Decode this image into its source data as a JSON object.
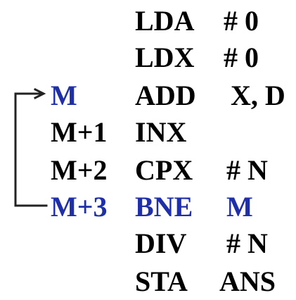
{
  "colors": {
    "text": "#000000",
    "highlight": "#1f2fa8",
    "arrow": "#222222"
  },
  "program": [
    {
      "addr": "",
      "op": "LDA",
      "arg": "# 0",
      "highlight": false
    },
    {
      "addr": "",
      "op": "LDX",
      "arg": "# 0",
      "highlight": false
    },
    {
      "addr": "M",
      "op": "ADD",
      "arg": "X, D",
      "highlight": "addr"
    },
    {
      "addr": "M+1",
      "op": "INX",
      "arg": "",
      "highlight": false
    },
    {
      "addr": "M+2",
      "op": "CPX",
      "arg": "# N",
      "highlight": false
    },
    {
      "addr": "M+3",
      "op": "BNE",
      "arg": "M",
      "highlight": "all"
    },
    {
      "addr": "",
      "op": "DIV",
      "arg": "# N",
      "highlight": false
    },
    {
      "addr": "",
      "op": "STA",
      "arg": "ANS",
      "highlight": false
    }
  ],
  "loop": {
    "from_label": "M+3",
    "to_label": "M"
  }
}
